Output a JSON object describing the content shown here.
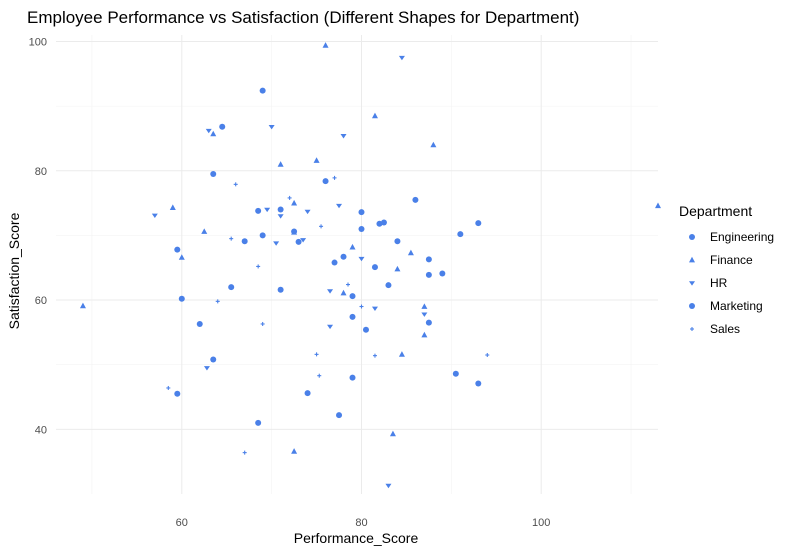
{
  "chart_data": {
    "type": "scatter",
    "title": "Employee Performance vs Satisfaction (Different Shapes for Department)",
    "xlabel": "Performance_Score",
    "ylabel": "Satisfaction_Score",
    "xlim": [
      46,
      113
    ],
    "ylim": [
      30,
      101
    ],
    "xticks": [
      60,
      80,
      100
    ],
    "yticks": [
      40,
      60,
      80,
      100
    ],
    "grid": true,
    "legend": {
      "title": "Department",
      "position": "right"
    },
    "color": "#4a80e8",
    "series": [
      {
        "name": "Engineering",
        "shape": "circle",
        "points": [
          [
            69,
            92.4
          ],
          [
            62,
            56.3
          ],
          [
            60,
            60.2
          ],
          [
            59.5,
            45.5
          ],
          [
            59.5,
            67.8
          ],
          [
            65.5,
            62
          ],
          [
            67,
            69.1
          ],
          [
            69,
            70
          ],
          [
            71,
            74
          ],
          [
            71,
            61.6
          ],
          [
            73,
            69
          ],
          [
            76,
            78.4
          ],
          [
            78,
            66.7
          ],
          [
            79,
            57.4
          ],
          [
            80,
            73.6
          ],
          [
            80,
            71
          ],
          [
            81.5,
            65.1
          ],
          [
            82.5,
            72
          ],
          [
            84,
            69.1
          ],
          [
            86,
            75.5
          ],
          [
            87.5,
            66.3
          ],
          [
            87.5,
            56.5
          ],
          [
            89,
            64.1
          ],
          [
            91,
            70.2
          ],
          [
            93,
            71.9
          ],
          [
            93,
            47.1
          ],
          [
            90.5,
            48.6
          ],
          [
            79,
            48
          ],
          [
            77.5,
            42.2
          ],
          [
            74,
            45.6
          ],
          [
            68.5,
            41
          ],
          [
            63.5,
            50.8
          ],
          [
            63.5,
            79.5
          ],
          [
            64.5,
            86.8
          ],
          [
            68.5,
            73.8
          ],
          [
            72.5,
            70.6
          ],
          [
            77,
            65.8
          ],
          [
            80.5,
            55.4
          ],
          [
            83,
            62.3
          ],
          [
            87.5,
            63.9
          ],
          [
            82,
            71.8
          ],
          [
            79,
            60.6
          ]
        ]
      },
      {
        "name": "Finance",
        "shape": "triangle",
        "points": [
          [
            49,
            59.1
          ],
          [
            59,
            74.3
          ],
          [
            60,
            66.6
          ],
          [
            63.5,
            85.7
          ],
          [
            71,
            81
          ],
          [
            72.5,
            75
          ],
          [
            72.5,
            70.5
          ],
          [
            75,
            81.6
          ],
          [
            76,
            99.4
          ],
          [
            78,
            61.1
          ],
          [
            79,
            68.2
          ],
          [
            81.5,
            88.5
          ],
          [
            83.5,
            39.3
          ],
          [
            84.5,
            51.6
          ],
          [
            84,
            64.8
          ],
          [
            85.5,
            67.3
          ],
          [
            87,
            54.6
          ],
          [
            87,
            59
          ],
          [
            88,
            84
          ],
          [
            72.5,
            36.6
          ],
          [
            113,
            74.6
          ],
          [
            62.5,
            70.6
          ]
        ]
      },
      {
        "name": "HR",
        "shape": "down-triangle",
        "points": [
          [
            63,
            86.2
          ],
          [
            69.5,
            74
          ],
          [
            70,
            86.8
          ],
          [
            71,
            73
          ],
          [
            74,
            73.7
          ],
          [
            76.5,
            61.4
          ],
          [
            77.5,
            74.6
          ],
          [
            78,
            85.4
          ],
          [
            80,
            66.4
          ],
          [
            81.5,
            58.7
          ],
          [
            84.5,
            97.5
          ],
          [
            87,
            57.8
          ],
          [
            70.5,
            68.8
          ],
          [
            76.5,
            55.9
          ],
          [
            62.8,
            49.5
          ],
          [
            73.5,
            69.3
          ],
          [
            83,
            31.3
          ],
          [
            57,
            73.1
          ]
        ]
      },
      {
        "name": "Sales",
        "shape": "plus",
        "points": [
          [
            58.5,
            46.4
          ],
          [
            64,
            59.8
          ],
          [
            66,
            77.9
          ],
          [
            67,
            36.4
          ],
          [
            68.5,
            65.2
          ],
          [
            69,
            56.3
          ],
          [
            72,
            75.8
          ],
          [
            75,
            51.6
          ],
          [
            75.5,
            71.4
          ],
          [
            77,
            78.9
          ],
          [
            81.5,
            51.4
          ],
          [
            94,
            51.5
          ],
          [
            65.5,
            69.5
          ],
          [
            80,
            59
          ],
          [
            75.3,
            48.3
          ],
          [
            78.5,
            62.4
          ]
        ]
      }
    ]
  }
}
